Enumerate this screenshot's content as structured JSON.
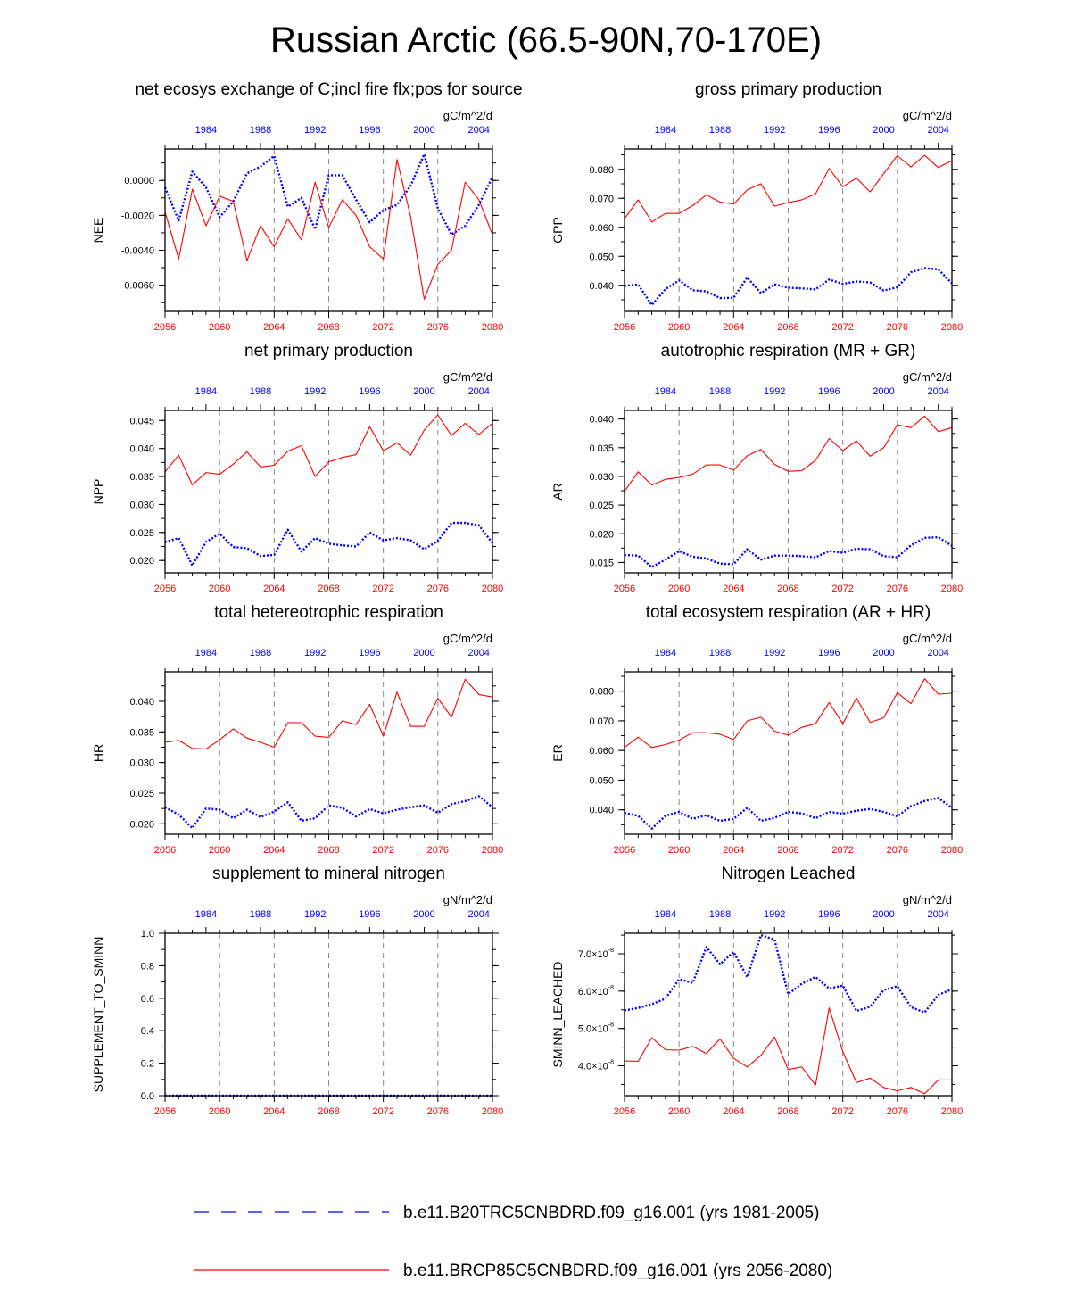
{
  "title": "Russian Arctic (66.5-90N,70-170E)",
  "colors": {
    "hist": "#0000ff",
    "future": "#ff0000",
    "axis": "#000000",
    "grid": "#888888"
  },
  "legend": {
    "hist_label": "b.e11.B20TRC5CNBDRD.f09_g16.001 (yrs 1981-2005)",
    "future_label": "b.e11.BRCP85C5CNBDRD.f09_g16.001 (yrs 2056-2080)"
  },
  "chart_data": [
    {
      "type": "line",
      "title": "net ecosys exchange of C;incl fire flx;pos for source",
      "ylabel": "NEE",
      "units": "gC/m^2/d",
      "x_bottom_ticks": [
        "2056",
        "2060",
        "2064",
        "2068",
        "2072",
        "2076",
        "2080"
      ],
      "x_top_ticks": [
        "1984",
        "1988",
        "1992",
        "1996",
        "2000",
        "2004"
      ],
      "ylim": [
        -0.0075,
        0.0018
      ],
      "yticks": [
        -0.006,
        -0.004,
        -0.002,
        0.0
      ],
      "ytick_labels": [
        "-0.0060",
        "-0.0040",
        "-0.0020",
        "0.0000"
      ],
      "series": [
        {
          "name": "b.e11.B20TRC5CNBDRD.f09_g16.001",
          "role": "hist",
          "values": [
            -0.0004,
            -0.0023,
            0.0005,
            -0.0004,
            -0.0021,
            -0.0012,
            0.0004,
            0.0008,
            0.0014,
            -0.0015,
            -0.001,
            -0.0028,
            0.0003,
            0.0003,
            -0.0011,
            -0.0024,
            -0.0017,
            -0.0014,
            -0.0003,
            0.0015,
            -0.0016,
            -0.0031,
            -0.0026,
            -0.0014,
            0.0002
          ]
        },
        {
          "name": "b.e11.BRCP85C5CNBDRD.f09_g16.001",
          "role": "future",
          "values": [
            -0.0018,
            -0.0045,
            -0.0005,
            -0.0026,
            -0.0009,
            -0.0012,
            -0.0046,
            -0.0026,
            -0.0038,
            -0.0022,
            -0.0034,
            -0.0001,
            -0.0027,
            -0.0011,
            -0.002,
            -0.0038,
            -0.0045,
            0.0012,
            -0.0021,
            -0.0068,
            -0.0048,
            -0.004,
            -0.0001,
            -0.0011,
            -0.0031
          ]
        }
      ]
    },
    {
      "type": "line",
      "title": "gross primary production",
      "ylabel": "GPP",
      "units": "gC/m^2/d",
      "x_bottom_ticks": [
        "2056",
        "2060",
        "2064",
        "2068",
        "2072",
        "2076",
        "2080"
      ],
      "x_top_ticks": [
        "1984",
        "1988",
        "1992",
        "1996",
        "2000",
        "2004"
      ],
      "ylim": [
        0.031,
        0.087
      ],
      "yticks": [
        0.04,
        0.05,
        0.06,
        0.07,
        0.08
      ],
      "ytick_labels": [
        "0.040",
        "0.050",
        "0.060",
        "0.070",
        "0.080"
      ],
      "series": [
        {
          "name": "b.e11.B20TRC5CNBDRD.f09_g16.001",
          "role": "hist",
          "values": [
            0.0398,
            0.0403,
            0.0332,
            0.0387,
            0.0417,
            0.0383,
            0.0379,
            0.0356,
            0.0357,
            0.0427,
            0.0373,
            0.0403,
            0.0392,
            0.0389,
            0.0386,
            0.042,
            0.0405,
            0.0413,
            0.041,
            0.0382,
            0.0393,
            0.0445,
            0.0459,
            0.0455,
            0.0407
          ]
        },
        {
          "name": "b.e11.BRCP85C5CNBDRD.f09_g16.001",
          "role": "future",
          "values": [
            0.063,
            0.0695,
            0.0618,
            0.0648,
            0.0648,
            0.0675,
            0.0712,
            0.0687,
            0.068,
            0.0729,
            0.075,
            0.0673,
            0.0685,
            0.0695,
            0.0715,
            0.0803,
            0.074,
            0.077,
            0.0722,
            0.0785,
            0.0847,
            0.0808,
            0.0848,
            0.0806,
            0.083
          ]
        }
      ]
    },
    {
      "type": "line",
      "title": "net primary production",
      "ylabel": "NPP",
      "units": "gC/m^2/d",
      "x_bottom_ticks": [
        "2056",
        "2060",
        "2064",
        "2068",
        "2072",
        "2076",
        "2080"
      ],
      "x_top_ticks": [
        "1984",
        "1988",
        "1992",
        "1996",
        "2000",
        "2004"
      ],
      "ylim": [
        0.0178,
        0.0468
      ],
      "yticks": [
        0.02,
        0.025,
        0.03,
        0.035,
        0.04,
        0.045
      ],
      "ytick_labels": [
        "0.020",
        "0.025",
        "0.030",
        "0.035",
        "0.040",
        "0.045"
      ],
      "series": [
        {
          "name": "b.e11.B20TRC5CNBDRD.f09_g16.001",
          "role": "hist",
          "values": [
            0.0233,
            0.024,
            0.0191,
            0.0233,
            0.0248,
            0.0224,
            0.0222,
            0.0208,
            0.021,
            0.0255,
            0.0216,
            0.024,
            0.023,
            0.0227,
            0.0225,
            0.025,
            0.0236,
            0.024,
            0.0236,
            0.022,
            0.0235,
            0.0267,
            0.0267,
            0.0263,
            0.0231
          ]
        },
        {
          "name": "b.e11.BRCP85C5CNBDRD.f09_g16.001",
          "role": "future",
          "values": [
            0.0358,
            0.0388,
            0.0335,
            0.0357,
            0.0354,
            0.0372,
            0.0394,
            0.0367,
            0.037,
            0.0395,
            0.0405,
            0.035,
            0.0376,
            0.0384,
            0.0389,
            0.0439,
            0.0396,
            0.041,
            0.0388,
            0.0433,
            0.046,
            0.0423,
            0.0445,
            0.0425,
            0.0445
          ]
        }
      ]
    },
    {
      "type": "line",
      "title": "autotrophic respiration (MR + GR)",
      "ylabel": "AR",
      "units": "gC/m^2/d",
      "x_bottom_ticks": [
        "2056",
        "2060",
        "2064",
        "2068",
        "2072",
        "2076",
        "2080"
      ],
      "x_top_ticks": [
        "1984",
        "1988",
        "1992",
        "1996",
        "2000",
        "2004"
      ],
      "ylim": [
        0.0132,
        0.0415
      ],
      "yticks": [
        0.015,
        0.02,
        0.025,
        0.03,
        0.035,
        0.04
      ],
      "ytick_labels": [
        "0.015",
        "0.020",
        "0.025",
        "0.030",
        "0.035",
        "0.040"
      ],
      "series": [
        {
          "name": "b.e11.B20TRC5CNBDRD.f09_g16.001",
          "role": "hist",
          "values": [
            0.0163,
            0.0162,
            0.0142,
            0.0155,
            0.017,
            0.016,
            0.0157,
            0.0148,
            0.0147,
            0.0173,
            0.0155,
            0.0162,
            0.0162,
            0.0161,
            0.0159,
            0.017,
            0.0167,
            0.0174,
            0.0173,
            0.0161,
            0.0159,
            0.018,
            0.0193,
            0.0194,
            0.0179
          ]
        },
        {
          "name": "b.e11.BRCP85C5CNBDRD.f09_g16.001",
          "role": "future",
          "values": [
            0.0274,
            0.0308,
            0.0285,
            0.0295,
            0.0298,
            0.0304,
            0.032,
            0.032,
            0.0311,
            0.0336,
            0.0347,
            0.0321,
            0.0309,
            0.031,
            0.0328,
            0.0366,
            0.0345,
            0.0362,
            0.0335,
            0.035,
            0.039,
            0.0385,
            0.0405,
            0.0378,
            0.0385
          ]
        }
      ]
    },
    {
      "type": "line",
      "title": "total hetereotrophic respiration",
      "ylabel": "HR",
      "units": "gC/m^2/d",
      "x_bottom_ticks": [
        "2056",
        "2060",
        "2064",
        "2068",
        "2072",
        "2076",
        "2080"
      ],
      "x_top_ticks": [
        "1984",
        "1988",
        "1992",
        "1996",
        "2000",
        "2004"
      ],
      "ylim": [
        0.0183,
        0.0448
      ],
      "yticks": [
        0.02,
        0.025,
        0.03,
        0.035,
        0.04
      ],
      "ytick_labels": [
        "0.020",
        "0.025",
        "0.030",
        "0.035",
        "0.040"
      ],
      "series": [
        {
          "name": "b.e11.B20TRC5CNBDRD.f09_g16.001",
          "role": "hist",
          "values": [
            0.0227,
            0.0215,
            0.0193,
            0.0225,
            0.0223,
            0.0209,
            0.0223,
            0.0211,
            0.022,
            0.0235,
            0.0205,
            0.0209,
            0.023,
            0.0226,
            0.0212,
            0.0224,
            0.0217,
            0.0223,
            0.0227,
            0.023,
            0.0218,
            0.0232,
            0.0237,
            0.0245,
            0.0227
          ]
        },
        {
          "name": "b.e11.BRCP85C5CNBDRD.f09_g16.001",
          "role": "future",
          "values": [
            0.0333,
            0.0336,
            0.0323,
            0.0322,
            0.0337,
            0.0355,
            0.034,
            0.0333,
            0.0325,
            0.0365,
            0.0365,
            0.0343,
            0.0341,
            0.0368,
            0.0362,
            0.0395,
            0.0343,
            0.0415,
            0.0359,
            0.0359,
            0.0405,
            0.0374,
            0.0436,
            0.0411,
            0.0407
          ]
        }
      ]
    },
    {
      "type": "line",
      "title": "total ecosystem respiration (AR + HR)",
      "ylabel": "ER",
      "units": "gC/m^2/d",
      "x_bottom_ticks": [
        "2056",
        "2060",
        "2064",
        "2068",
        "2072",
        "2076",
        "2080"
      ],
      "x_top_ticks": [
        "1984",
        "1988",
        "1992",
        "1996",
        "2000",
        "2004"
      ],
      "ylim": [
        0.0318,
        0.0865
      ],
      "yticks": [
        0.04,
        0.05,
        0.06,
        0.07,
        0.08
      ],
      "ytick_labels": [
        "0.040",
        "0.050",
        "0.060",
        "0.070",
        "0.080"
      ],
      "series": [
        {
          "name": "b.e11.B20TRC5CNBDRD.f09_g16.001",
          "role": "hist",
          "values": [
            0.039,
            0.038,
            0.0337,
            0.038,
            0.0393,
            0.037,
            0.0382,
            0.0363,
            0.037,
            0.0407,
            0.0363,
            0.0373,
            0.0393,
            0.0388,
            0.0372,
            0.0393,
            0.0387,
            0.0397,
            0.0403,
            0.0393,
            0.0378,
            0.0412,
            0.043,
            0.044,
            0.0407
          ]
        },
        {
          "name": "b.e11.BRCP85C5CNBDRD.f09_g16.001",
          "role": "future",
          "values": [
            0.061,
            0.0645,
            0.061,
            0.062,
            0.0635,
            0.066,
            0.066,
            0.0655,
            0.0637,
            0.07,
            0.0712,
            0.0665,
            0.0652,
            0.0678,
            0.069,
            0.0762,
            0.069,
            0.0777,
            0.0695,
            0.071,
            0.0795,
            0.0758,
            0.0842,
            0.079,
            0.0793
          ]
        }
      ]
    },
    {
      "type": "line",
      "title": "supplement to mineral nitrogen",
      "ylabel": "SUPPLEMENT_TO_SMINN",
      "units": "gN/m^2/d",
      "x_bottom_ticks": [
        "2056",
        "2060",
        "2064",
        "2068",
        "2072",
        "2076",
        "2080"
      ],
      "x_top_ticks": [
        "1984",
        "1988",
        "1992",
        "1996",
        "2000",
        "2004"
      ],
      "ylim": [
        0.0,
        1.0
      ],
      "yticks": [
        0.0,
        0.2,
        0.4,
        0.6,
        0.8,
        1.0
      ],
      "ytick_labels": [
        "0.0",
        "0.2",
        "0.4",
        "0.6",
        "0.8",
        "1.0"
      ],
      "series": [
        {
          "name": "b.e11.B20TRC5CNBDRD.f09_g16.001",
          "role": "hist",
          "values": [
            0,
            0,
            0,
            0,
            0,
            0,
            0,
            0,
            0,
            0,
            0,
            0,
            0,
            0,
            0,
            0,
            0,
            0,
            0,
            0,
            0,
            0,
            0,
            0,
            0
          ]
        },
        {
          "name": "b.e11.BRCP85C5CNBDRD.f09_g16.001",
          "role": "future",
          "values": [
            0,
            0,
            0,
            0,
            0,
            0,
            0,
            0,
            0,
            0,
            0,
            0,
            0,
            0,
            0,
            0,
            0,
            0,
            0,
            0,
            0,
            0,
            0,
            0,
            0
          ]
        }
      ]
    },
    {
      "type": "line",
      "title": "Nitrogen Leached",
      "ylabel": "SMINN_LEACHED",
      "units": "gN/m^2/d",
      "x_bottom_ticks": [
        "2056",
        "2060",
        "2064",
        "2068",
        "2072",
        "2076",
        "2080"
      ],
      "x_top_ticks": [
        "1984",
        "1988",
        "1992",
        "1996",
        "2000",
        "2004"
      ],
      "ylim": [
        3.2e-08,
        7.55e-08
      ],
      "yticks": [
        4e-08,
        5e-08,
        6e-08,
        7e-08
      ],
      "ytick_labels": [
        [
          "4.0",
          "-8"
        ],
        [
          "5.0",
          "-8"
        ],
        [
          "6.0",
          "-8"
        ],
        [
          "7.0",
          "-8"
        ]
      ],
      "ytick_base": "×10",
      "series": [
        {
          "name": "b.e11.B20TRC5CNBDRD.f09_g16.001",
          "role": "hist",
          "values": [
            5.48e-08,
            5.55e-08,
            5.65e-08,
            5.8e-08,
            6.32e-08,
            6.22e-08,
            7.18e-08,
            6.72e-08,
            7.05e-08,
            6.38e-08,
            7.5e-08,
            7.38e-08,
            5.92e-08,
            6.2e-08,
            6.38e-08,
            6.07e-08,
            6.15e-08,
            5.47e-08,
            5.58e-08,
            6.03e-08,
            6.13e-08,
            5.57e-08,
            5.43e-08,
            5.9e-08,
            6.05e-08
          ]
        },
        {
          "name": "b.e11.BRCP85C5CNBDRD.f09_g16.001",
          "role": "future",
          "values": [
            4.13e-08,
            4.12e-08,
            4.75e-08,
            4.43e-08,
            4.42e-08,
            4.52e-08,
            4.33e-08,
            4.72e-08,
            4.2e-08,
            3.97e-08,
            4.28e-08,
            4.77e-08,
            3.9e-08,
            3.97e-08,
            3.48e-08,
            5.55e-08,
            4.38e-08,
            3.55e-08,
            3.67e-08,
            3.42e-08,
            3.33e-08,
            3.42e-08,
            3.25e-08,
            3.62e-08,
            3.62e-08
          ]
        }
      ]
    }
  ]
}
